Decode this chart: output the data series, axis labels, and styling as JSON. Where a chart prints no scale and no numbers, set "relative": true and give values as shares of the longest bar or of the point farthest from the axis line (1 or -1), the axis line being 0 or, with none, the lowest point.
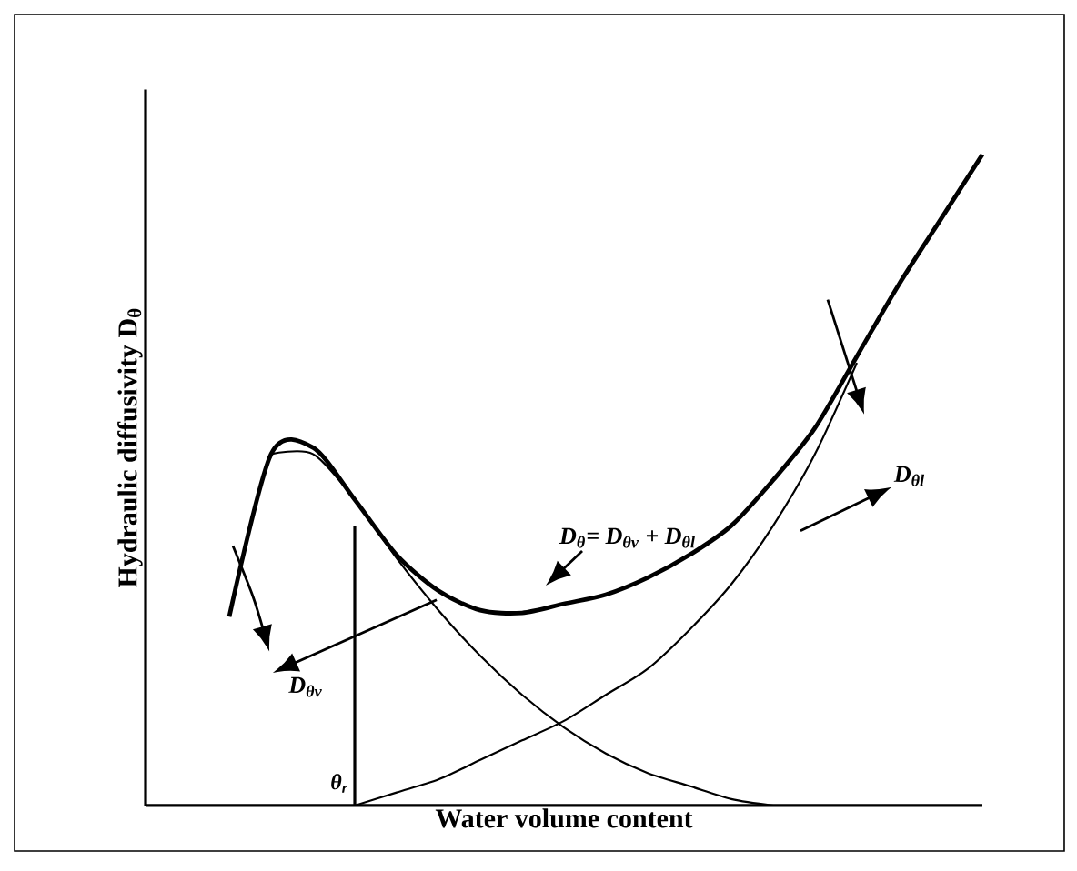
{
  "chart_data": {
    "type": "line",
    "relative": true,
    "xlabel": "Water volume content",
    "ylabel": "Hydraulic diffusivity D$_{θ}$",
    "categories": [
      null,
      null,
      null,
      null,
      null,
      null,
      null,
      null,
      null,
      null,
      null,
      null,
      null,
      null,
      null,
      null,
      null,
      null,
      null,
      null,
      null
    ],
    "series": [
      {
        "name": "D$_{θ}$= D$_{θv}$ + D$_{θl}$",
        "color": "#000000",
        "values": [
          null,
          null,
          0.29,
          0.54,
          0.55,
          0.47,
          0.385,
          0.33,
          0.3,
          0.296,
          0.31,
          0.324,
          0.35,
          0.385,
          0.43,
          0.5,
          0.58,
          0.69,
          0.8,
          0.9,
          1.0
        ]
      },
      {
        "name": "D$_{θv}$",
        "color": "#000000",
        "values": [
          null,
          null,
          null,
          0.54,
          0.54,
          0.47,
          0.38,
          0.3,
          0.23,
          0.17,
          0.12,
          0.08,
          0.05,
          0.03,
          0.01,
          0.0,
          null,
          null,
          null,
          null,
          null
        ]
      },
      {
        "name": "D$_{θl}$",
        "color": "#000000",
        "values": [
          null,
          null,
          null,
          null,
          null,
          0.0,
          0.02,
          0.04,
          0.07,
          0.1,
          0.13,
          0.17,
          0.21,
          0.27,
          0.34,
          0.43,
          0.54,
          0.68,
          null,
          null,
          null
        ]
      }
    ],
    "annotations": [
      "θ$_{r}$"
    ]
  }
}
